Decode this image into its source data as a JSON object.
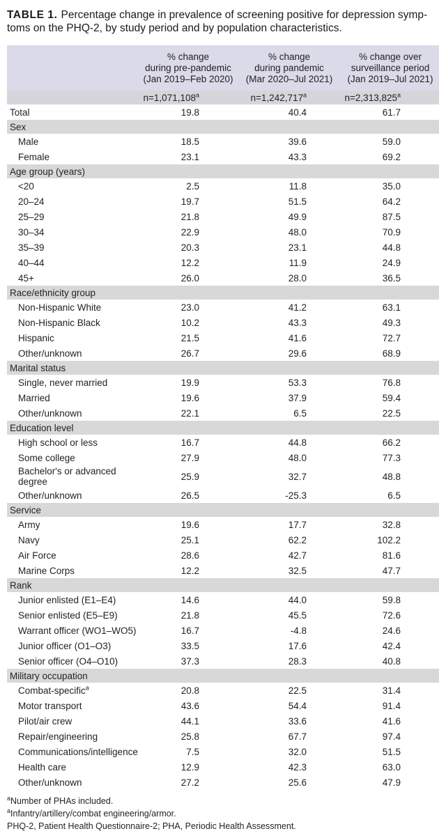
{
  "title": {
    "label": "TABLE 1.",
    "line1": "Percentage change in prevalence of screening positive for depression symp-",
    "line2": "toms on the PHQ-2, by study period and by population characteristics."
  },
  "colors": {
    "header_bg": "#dadae8",
    "n_row_bg": "#d7d5dc",
    "section_bg": "#d9d8d8",
    "text": "#231f20"
  },
  "table": {
    "columns": [
      {
        "lines": [
          "% change",
          "during pre-pandemic",
          "(Jan 2019–Feb 2020)"
        ],
        "n": "n=1,071,108",
        "n_sup": "a"
      },
      {
        "lines": [
          "% change",
          "during pandemic",
          "(Mar 2020–Jul 2021)"
        ],
        "n": "n=1,242,717",
        "n_sup": "a"
      },
      {
        "lines": [
          "% change over",
          "surveillance period",
          "(Jan 2019–Jul 2021)"
        ],
        "n": "n=2,313,825",
        "n_sup": "a"
      }
    ],
    "rows": [
      {
        "type": "data",
        "flush": true,
        "label": "Total",
        "values": [
          "19.8",
          "40.4",
          "61.7"
        ]
      },
      {
        "type": "section",
        "label": "Sex"
      },
      {
        "type": "data",
        "label": "Male",
        "values": [
          "18.5",
          "39.6",
          "59.0"
        ]
      },
      {
        "type": "data",
        "label": "Female",
        "values": [
          "23.1",
          "43.3",
          "69.2"
        ]
      },
      {
        "type": "section",
        "label": "Age group (years)"
      },
      {
        "type": "data",
        "label": "<20",
        "values": [
          "2.5",
          "11.8",
          "35.0"
        ]
      },
      {
        "type": "data",
        "label": "20–24",
        "values": [
          "19.7",
          "51.5",
          "64.2"
        ]
      },
      {
        "type": "data",
        "label": "25–29",
        "values": [
          "21.8",
          "49.9",
          "87.5"
        ]
      },
      {
        "type": "data",
        "label": "30–34",
        "values": [
          "22.9",
          "48.0",
          "70.9"
        ]
      },
      {
        "type": "data",
        "label": "35–39",
        "values": [
          "20.3",
          "23.1",
          "44.8"
        ]
      },
      {
        "type": "data",
        "label": "40–44",
        "values": [
          "12.2",
          "11.9",
          "24.9"
        ]
      },
      {
        "type": "data",
        "label": "45+",
        "values": [
          "26.0",
          "28.0",
          "36.5"
        ]
      },
      {
        "type": "section",
        "label": "Race/ethnicity group"
      },
      {
        "type": "data",
        "label": "Non-Hispanic White",
        "values": [
          "23.0",
          "41.2",
          "63.1"
        ]
      },
      {
        "type": "data",
        "label": "Non-Hispanic Black",
        "values": [
          "10.2",
          "43.3",
          "49.3"
        ]
      },
      {
        "type": "data",
        "label": "Hispanic",
        "values": [
          "21.5",
          "41.6",
          "72.7"
        ]
      },
      {
        "type": "data",
        "label": "Other/unknown",
        "values": [
          "26.7",
          "29.6",
          "68.9"
        ]
      },
      {
        "type": "section",
        "label": "Marital status"
      },
      {
        "type": "data",
        "label": "Single, never married",
        "values": [
          "19.9",
          "53.3",
          "76.8"
        ]
      },
      {
        "type": "data",
        "label": "Married",
        "values": [
          "19.6",
          "37.9",
          "59.4"
        ]
      },
      {
        "type": "data",
        "label": "Other/unknown",
        "values": [
          "22.1",
          "6.5",
          "22.5"
        ]
      },
      {
        "type": "section",
        "label": "Education level"
      },
      {
        "type": "data",
        "label": "High school or less",
        "values": [
          "16.7",
          "44.8",
          "66.2"
        ]
      },
      {
        "type": "data",
        "label": "Some college",
        "values": [
          "27.9",
          "48.0",
          "77.3"
        ]
      },
      {
        "type": "data",
        "label": "Bachelor's or advanced degree",
        "wrap": true,
        "values": [
          "25.9",
          "32.7",
          "48.8"
        ]
      },
      {
        "type": "data",
        "label": "Other/unknown",
        "values": [
          "26.5",
          "-25.3",
          "6.5"
        ]
      },
      {
        "type": "section",
        "label": "Service"
      },
      {
        "type": "data",
        "label": "Army",
        "values": [
          "19.6",
          "17.7",
          "32.8"
        ]
      },
      {
        "type": "data",
        "label": "Navy",
        "values": [
          "25.1",
          "62.2",
          "102.2"
        ]
      },
      {
        "type": "data",
        "label": "Air Force",
        "values": [
          "28.6",
          "42.7",
          "81.6"
        ]
      },
      {
        "type": "data",
        "label": "Marine Corps",
        "values": [
          "12.2",
          "32.5",
          "47.7"
        ]
      },
      {
        "type": "section",
        "label": "Rank"
      },
      {
        "type": "data",
        "label": "Junior enlisted (E1–E4)",
        "values": [
          "14.6",
          "44.0",
          "59.8"
        ]
      },
      {
        "type": "data",
        "label": "Senior enlisted (E5–E9)",
        "values": [
          "21.8",
          "45.5",
          "72.6"
        ]
      },
      {
        "type": "data",
        "label": "Warrant officer (WO1–WO5)",
        "values": [
          "16.7",
          "-4.8",
          "24.6"
        ]
      },
      {
        "type": "data",
        "label": "Junior officer (O1–O3)",
        "values": [
          "33.5",
          "17.6",
          "42.4"
        ]
      },
      {
        "type": "data",
        "label": "Senior officer (O4–O10)",
        "values": [
          "37.3",
          "28.3",
          "40.8"
        ]
      },
      {
        "type": "section",
        "label": "Military occupation"
      },
      {
        "type": "data",
        "label": "Combat-specific",
        "label_sup": "a",
        "values": [
          "20.8",
          "22.5",
          "31.4"
        ]
      },
      {
        "type": "data",
        "label": "Motor transport",
        "values": [
          "43.6",
          "54.4",
          "91.4"
        ]
      },
      {
        "type": "data",
        "label": "Pilot/air crew",
        "values": [
          "44.1",
          "33.6",
          "41.6"
        ]
      },
      {
        "type": "data",
        "label": "Repair/engineering",
        "values": [
          "25.8",
          "67.7",
          "97.4"
        ]
      },
      {
        "type": "data",
        "label": "Communications/intelligence",
        "values": [
          "7.5",
          "32.0",
          "51.5"
        ]
      },
      {
        "type": "data",
        "label": "Health care",
        "values": [
          "12.9",
          "42.3",
          "63.0"
        ]
      },
      {
        "type": "data",
        "label": "Other/unknown",
        "values": [
          "27.2",
          "25.6",
          "47.9"
        ]
      }
    ]
  },
  "footnotes": [
    {
      "sup": "a",
      "text": "Number of PHAs included."
    },
    {
      "sup": "a",
      "text": "Infantry/artillery/combat engineering/armor."
    },
    {
      "sup": "",
      "text": "PHQ-2, Patient Health Questionnaire-2; PHA, Periodic Health Assessment."
    }
  ]
}
